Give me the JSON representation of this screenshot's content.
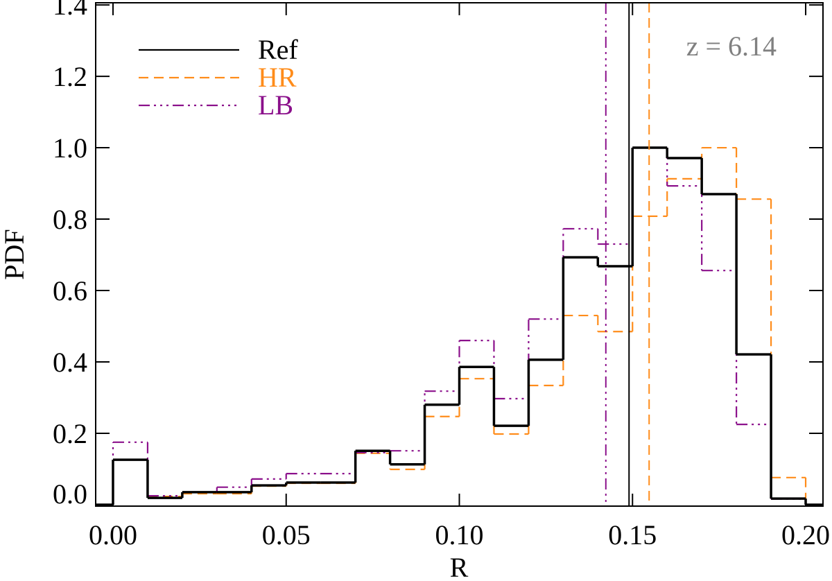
{
  "chart_data": {
    "type": "step-histogram",
    "x_label": "R",
    "y_label": "PDF",
    "annotation": "z = 6.14",
    "bins": [
      0.0,
      0.01,
      0.02,
      0.03,
      0.04,
      0.05,
      0.06,
      0.07,
      0.08,
      0.09,
      0.1,
      0.11,
      0.12,
      0.13,
      0.14,
      0.15,
      0.16,
      0.17,
      0.18,
      0.19,
      0.2
    ],
    "series": [
      {
        "name": "Ref",
        "color": "#000000",
        "style": "solid",
        "vline": 0.149,
        "values": [
          0.126,
          0.019,
          0.035,
          0.035,
          0.054,
          0.062,
          0.062,
          0.151,
          0.113,
          0.28,
          0.386,
          0.221,
          0.406,
          0.693,
          0.668,
          1.0,
          0.971,
          0.87,
          0.421,
          0.017
        ]
      },
      {
        "name": "HR",
        "color": "#ff8c1a",
        "style": "dashed",
        "vline": 0.1548,
        "values": [
          0.126,
          0.023,
          0.031,
          0.031,
          0.052,
          0.06,
          0.06,
          0.144,
          0.099,
          0.247,
          0.353,
          0.198,
          0.334,
          0.53,
          0.485,
          0.808,
          0.913,
          1.0,
          0.856,
          0.076
        ]
      },
      {
        "name": "LB",
        "color": "#8b108b",
        "style": "dashdotdot",
        "vline": 0.1423,
        "values": [
          0.175,
          0.025,
          0.035,
          0.049,
          0.072,
          0.087,
          0.087,
          0.146,
          0.151,
          0.318,
          0.46,
          0.297,
          0.52,
          0.773,
          0.73,
          1.0,
          0.893,
          0.656,
          0.225,
          0.016
        ]
      }
    ],
    "xlim": [
      -0.005,
      0.205
    ],
    "ylim": [
      -0.004,
      1.406
    ],
    "xticks": [
      {
        "value": 0.0,
        "label": "0.00"
      },
      {
        "value": 0.05,
        "label": "0.05"
      },
      {
        "value": 0.1,
        "label": "0.10"
      },
      {
        "value": 0.15,
        "label": "0.15"
      },
      {
        "value": 0.2,
        "label": "0.20"
      }
    ],
    "yticks": [
      {
        "value": 0.0,
        "label": "0.0"
      },
      {
        "value": 0.2,
        "label": "0.2"
      },
      {
        "value": 0.4,
        "label": "0.4"
      },
      {
        "value": 0.6,
        "label": "0.6"
      },
      {
        "value": 0.8,
        "label": "0.8"
      },
      {
        "value": 1.0,
        "label": "1.0"
      },
      {
        "value": 1.2,
        "label": "1.2"
      },
      {
        "value": 1.4,
        "label": "1.4"
      }
    ],
    "annotation_color": "#808080"
  }
}
